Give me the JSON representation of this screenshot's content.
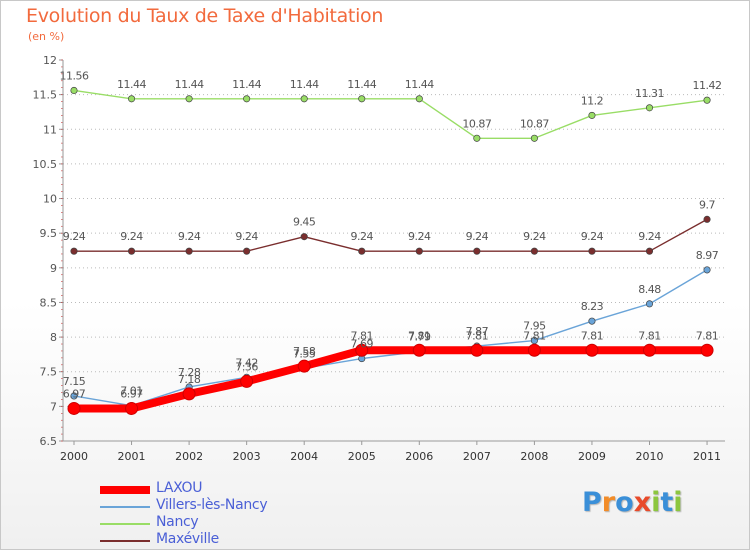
{
  "header": {
    "title": "Evolution du Taux de Taxe d'Habitation",
    "subtitle": "(en %)"
  },
  "logo": {
    "text": "Proxiti",
    "letters": [
      "P",
      "r",
      "o",
      "x",
      "i",
      "t",
      "i"
    ],
    "letter_colors": [
      "#3a8fd8",
      "#f28c28",
      "#3a8fd8",
      "#e84a2a",
      "#8cc63f",
      "#3a8fd8",
      "#8cc63f"
    ]
  },
  "chart_data": {
    "type": "line",
    "title": "Evolution du Taux de Taxe d'Habitation",
    "subtitle": "(en %)",
    "xlabel": "",
    "ylabel": "",
    "ylim": [
      6.5,
      12
    ],
    "yticks": [
      "6.5",
      "7",
      "7.5",
      "8",
      "8.5",
      "9",
      "9.5",
      "10",
      "10.5",
      "11",
      "11.5",
      "12"
    ],
    "categories": [
      "2000",
      "2001",
      "2002",
      "2003",
      "2004",
      "2005",
      "2006",
      "2007",
      "2008",
      "2009",
      "2010",
      "2011"
    ],
    "grid": "horizontal-dotted",
    "legend_position": "bottom-left",
    "series": [
      {
        "name": "LAXOU",
        "color": "#ff0000",
        "values": [
          6.97,
          6.97,
          7.18,
          7.36,
          7.58,
          7.81,
          7.81,
          7.81,
          7.81,
          7.81,
          7.81,
          7.81
        ],
        "labels": [
          "6.97",
          "6.97",
          "7.18",
          "7.36",
          "7.58",
          "7.81",
          "7.81",
          "7.81",
          "7.81",
          "7.81",
          "7.81",
          "7.81"
        ]
      },
      {
        "name": "Villers-lès-Nancy",
        "color": "#6aa4d8",
        "values": [
          7.15,
          7.01,
          7.28,
          7.42,
          7.55,
          7.69,
          7.79,
          7.87,
          7.95,
          8.23,
          8.48,
          8.97
        ],
        "labels": [
          "7.15",
          "7.01",
          "7.28",
          "7.42",
          "7.55",
          "7.69",
          "7.79",
          "7.87",
          "7.95",
          "8.23",
          "8.48",
          "8.97"
        ]
      },
      {
        "name": "Nancy",
        "color": "#99dd66",
        "values": [
          11.56,
          11.44,
          11.44,
          11.44,
          11.44,
          11.44,
          11.44,
          10.87,
          10.87,
          11.2,
          11.31,
          11.42
        ],
        "labels": [
          "11.56",
          "11.44",
          "11.44",
          "11.44",
          "11.44",
          "11.44",
          "11.44",
          "10.87",
          "10.87",
          "11.2",
          "11.31",
          "11.42"
        ]
      },
      {
        "name": "Maxéville",
        "color": "#7a2e2e",
        "values": [
          9.24,
          9.24,
          9.24,
          9.24,
          9.45,
          9.24,
          9.24,
          9.24,
          9.24,
          9.24,
          9.24,
          9.7
        ],
        "labels": [
          "9.24",
          "9.24",
          "9.24",
          "9.24",
          "9.45",
          "9.24",
          "9.24",
          "9.24",
          "9.24",
          "9.24",
          "9.24",
          "9.7"
        ]
      }
    ]
  }
}
